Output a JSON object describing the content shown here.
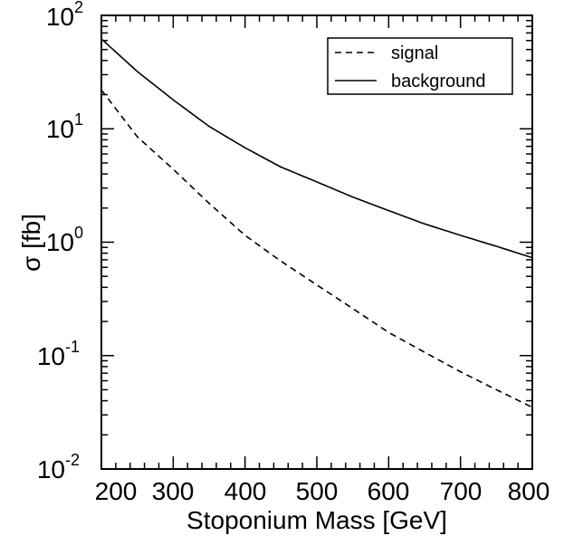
{
  "chart_data": {
    "type": "line",
    "title": "",
    "xlabel": "Stoponium Mass  [GeV]",
    "ylabel": "σ  [fb]",
    "xlim": [
      200,
      800
    ],
    "ylim": [
      0.01,
      100
    ],
    "yscale": "log",
    "x_ticks": [
      "200",
      "300",
      "400",
      "500",
      "600",
      "700",
      "800"
    ],
    "y_ticks": [
      {
        "base": "10",
        "exp": "-2"
      },
      {
        "base": "10",
        "exp": "-1"
      },
      {
        "base": "10",
        "exp": "0"
      },
      {
        "base": "10",
        "exp": "1"
      },
      {
        "base": "10",
        "exp": "2"
      }
    ],
    "legend_position": "top-right",
    "series": [
      {
        "name": "signal",
        "style": "dashed",
        "x": [
          200,
          250,
          300,
          350,
          400,
          450,
          500,
          550,
          600,
          650,
          700,
          750,
          800
        ],
        "y": [
          22,
          8.5,
          4.4,
          2.2,
          1.15,
          0.68,
          0.42,
          0.26,
          0.16,
          0.107,
          0.072,
          0.05,
          0.035
        ]
      },
      {
        "name": "background",
        "style": "solid",
        "x": [
          200,
          250,
          300,
          350,
          400,
          450,
          500,
          550,
          600,
          650,
          700,
          750,
          800
        ],
        "y": [
          62,
          32,
          18,
          10.5,
          6.8,
          4.6,
          3.4,
          2.5,
          1.9,
          1.45,
          1.15,
          0.92,
          0.73
        ]
      }
    ]
  }
}
